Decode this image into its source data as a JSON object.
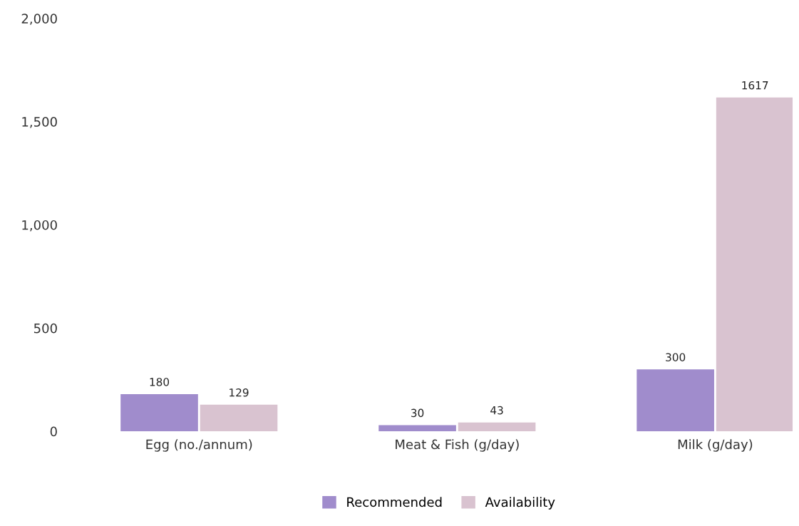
{
  "chart_data": {
    "type": "bar",
    "categories": [
      "Egg (no./annum)",
      "Meat & Fish (g/day)",
      "Milk (g/day)"
    ],
    "series": [
      {
        "name": "Recommended",
        "color": "#a08ccc",
        "values": [
          180,
          30,
          300
        ]
      },
      {
        "name": "Availability",
        "color": "#d9c3d0",
        "values": [
          129,
          43,
          1617
        ]
      }
    ],
    "ylim": [
      0,
      2000
    ],
    "yticks": [
      0,
      500,
      {
        "value": 1000,
        "label": "1,000"
      },
      {
        "value": 1500,
        "label": "1,500"
      },
      {
        "value": 2000,
        "label": "2,000"
      }
    ],
    "data_labels": true,
    "grid": false,
    "legend": "bottom"
  }
}
